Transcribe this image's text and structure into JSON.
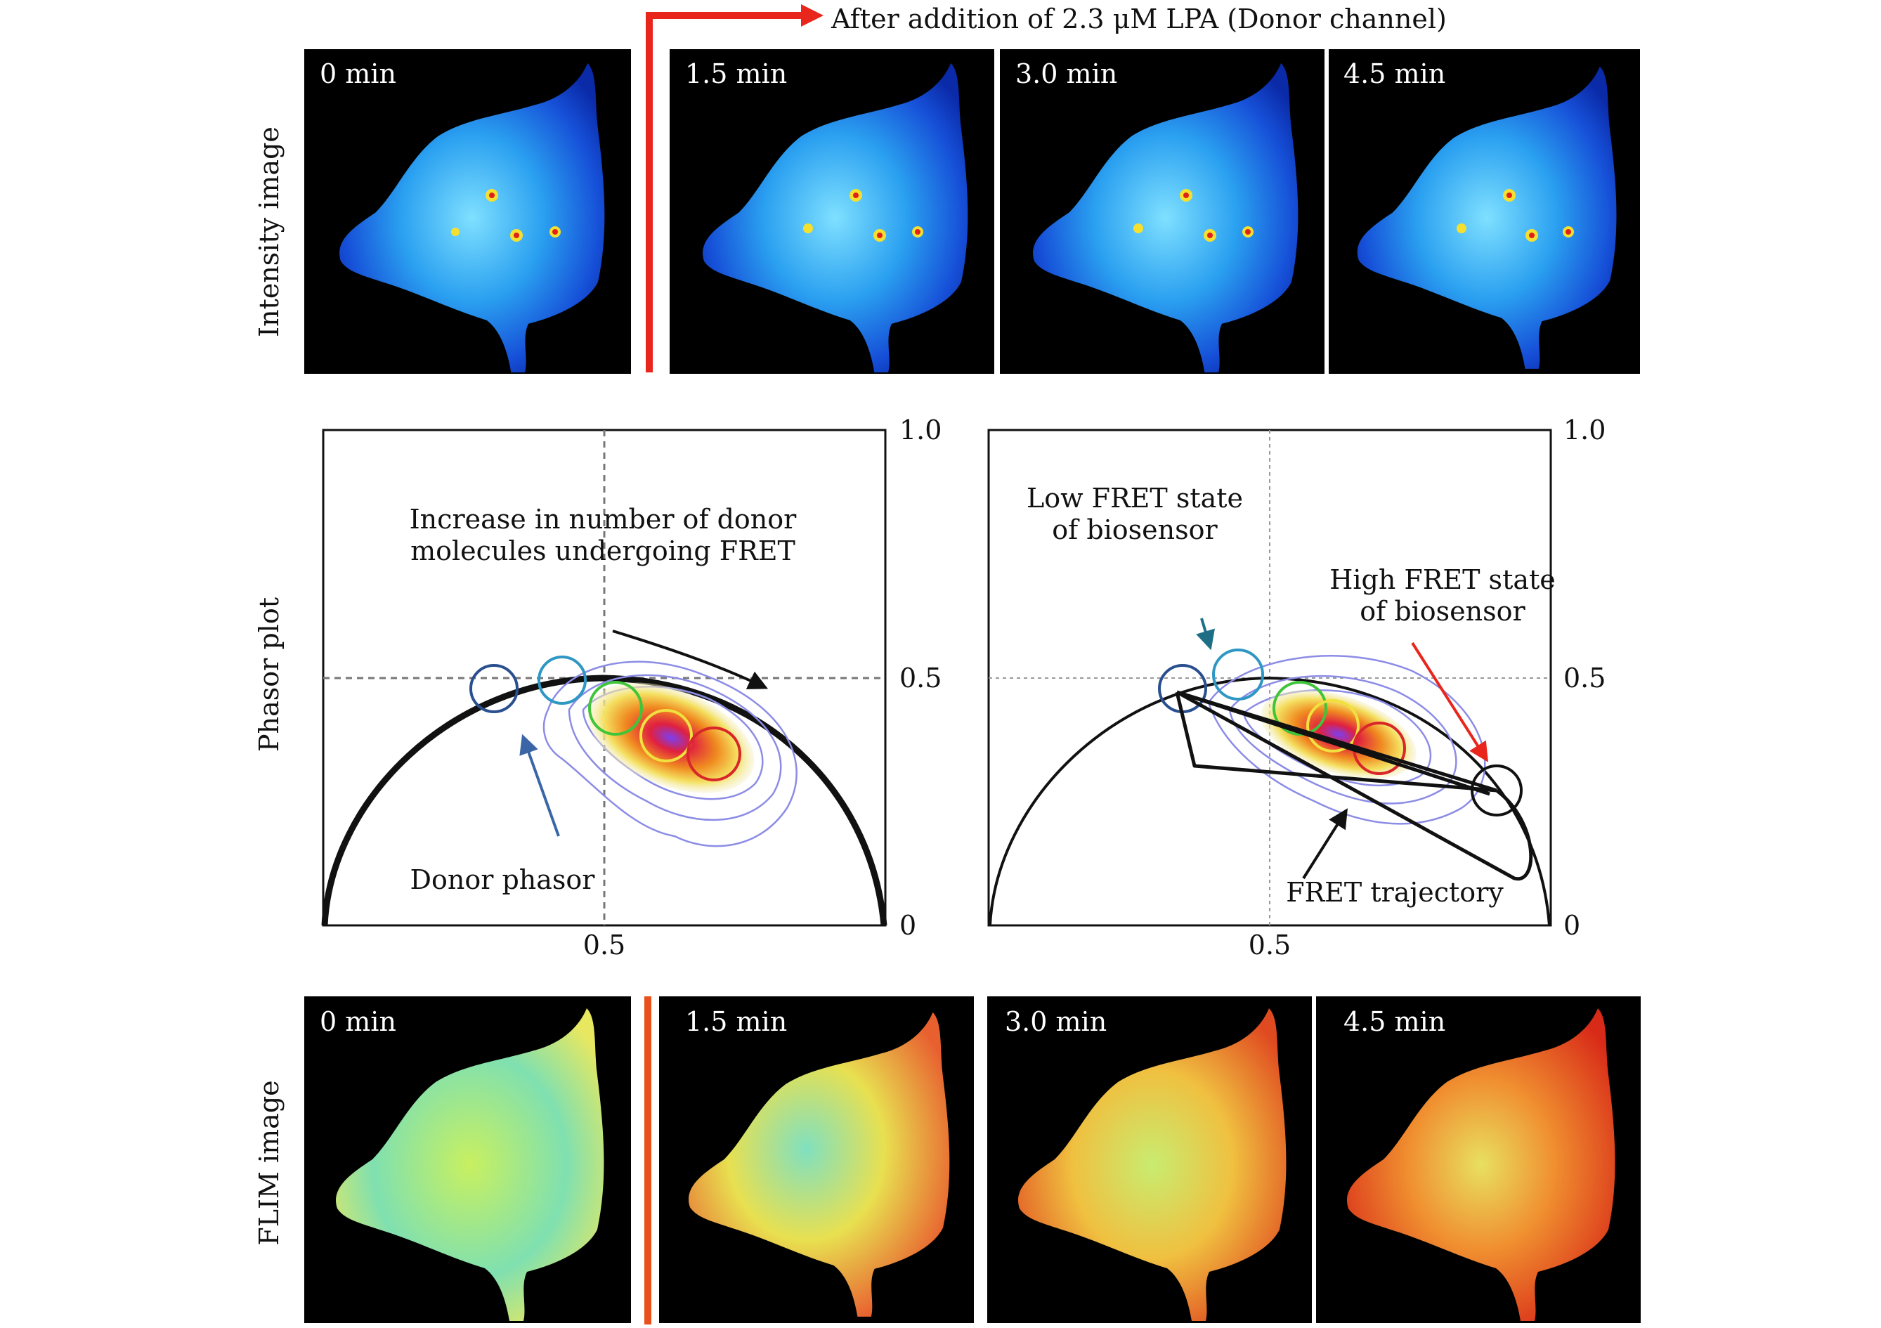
{
  "header": {
    "arrow_caption": "After addition of 2.3 μM LPA (Donor channel)"
  },
  "row_labels": {
    "intensity": "Intensity image",
    "phasor": "Phasor plot",
    "flim": "FLIM image"
  },
  "intensity_panels": [
    {
      "time": "0 min"
    },
    {
      "time": "1.5 min"
    },
    {
      "time": "3.0 min"
    },
    {
      "time": "4.5 min"
    }
  ],
  "flim_panels": [
    {
      "time": "0 min"
    },
    {
      "time": "1.5 min"
    },
    {
      "time": "3.0 min"
    },
    {
      "time": "4.5 min"
    }
  ],
  "phasor_left": {
    "annotation_fret": [
      "Increase in number of donor",
      "molecules undergoing FRET"
    ],
    "annotation_donor": "Donor phasor"
  },
  "phasor_right": {
    "annotation_low": [
      "Low FRET state",
      "of biosensor"
    ],
    "annotation_high": [
      "High FRET state",
      "of biosensor"
    ],
    "annotation_trajectory": "FRET trajectory"
  },
  "axes": {
    "y_top": "1.0",
    "y_mid": "0.5",
    "y_bottom": "0",
    "x_mid": "0.5"
  },
  "colors": {
    "accent_red": "#e8261c",
    "donor_circle": "#2a4f8f",
    "low_fret_circle": "#2f97c4",
    "green_circle": "#3fc43a",
    "yellow_circle": "#f0e040",
    "red_circle": "#d8262a"
  }
}
